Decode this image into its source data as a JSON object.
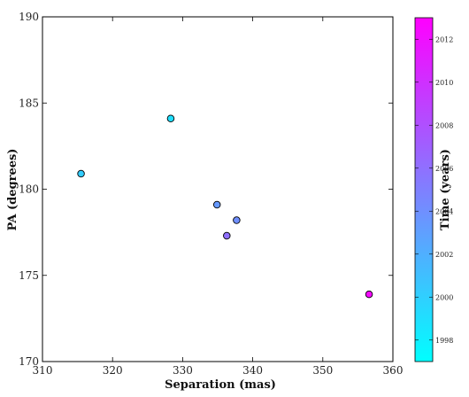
{
  "chart_data": {
    "type": "scatter",
    "xlabel": "Separation (mas)",
    "ylabel": "PA (degrees)",
    "xlim": [
      310,
      360
    ],
    "ylim": [
      170,
      190
    ],
    "x_ticks": [
      310,
      320,
      330,
      340,
      350,
      360
    ],
    "y_ticks": [
      170,
      175,
      180,
      185,
      190
    ],
    "grid": false,
    "points": [
      {
        "x": 315.5,
        "y": 180.9,
        "time": 2000.2
      },
      {
        "x": 328.3,
        "y": 184.1,
        "time": 1999.0
      },
      {
        "x": 334.9,
        "y": 179.1,
        "time": 2003.4
      },
      {
        "x": 337.7,
        "y": 178.2,
        "time": 2004.0
      },
      {
        "x": 336.3,
        "y": 177.3,
        "time": 2006.0
      },
      {
        "x": 356.6,
        "y": 173.9,
        "time": 2012.4
      }
    ],
    "colorbar": {
      "label": "Time (years)",
      "range": [
        1997,
        2013
      ],
      "ticks": [
        1998,
        2000,
        2002,
        2004,
        2006,
        2008,
        2010,
        2012
      ],
      "colors": [
        "#00ffff",
        "#ff00ff"
      ]
    }
  }
}
